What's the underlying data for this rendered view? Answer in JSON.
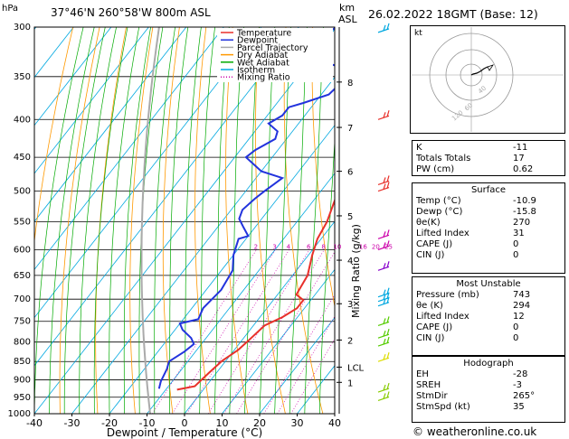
{
  "header": {
    "location": "37°46'N  260°58'W  800m  ASL",
    "datetime": "26.02.2022  18GMT  (Base: 12)",
    "hpa_unit": "hPa",
    "km_unit": "km",
    "asl_unit": "ASL"
  },
  "footer": {
    "copyright": "© weatheronline.co.uk"
  },
  "chart_data": {
    "type": "line",
    "title": "",
    "xlabel": "Dewpoint / Temperature (°C)",
    "ylabel_right": "Mixing Ratio (g/kg)",
    "x_ticks": [
      "-40",
      "-30",
      "-20",
      "-10",
      "0",
      "10",
      "20",
      "30",
      "40"
    ],
    "xlim": [
      -40,
      40
    ],
    "ylim_hpa": [
      1000,
      300
    ],
    "pressure_ticks": [
      "300",
      "350",
      "400",
      "450",
      "500",
      "550",
      "600",
      "650",
      "700",
      "750",
      "800",
      "850",
      "900",
      "950",
      "1000"
    ],
    "km_ticks": [
      {
        "label": "8",
        "p": 356
      },
      {
        "label": "7",
        "p": 410
      },
      {
        "label": "6",
        "p": 470
      },
      {
        "label": "5",
        "p": 540
      },
      {
        "label": "4",
        "p": 620
      },
      {
        "label": "3",
        "p": 710
      },
      {
        "label": "2",
        "p": 795
      },
      {
        "label": "LCL",
        "p": 865
      },
      {
        "label": "1",
        "p": 907
      }
    ],
    "mixing_ratio_labels": [
      "2",
      "3",
      "4",
      "6",
      "8",
      "10",
      "16",
      "20",
      "25"
    ],
    "legend": [
      {
        "name": "Temperature",
        "color": "#e8302a"
      },
      {
        "name": "Dewpoint",
        "color": "#2233dd"
      },
      {
        "name": "Parcel Trajectory",
        "color": "#aaaaaa"
      },
      {
        "name": "Dry Adiabat",
        "color": "#ff9900"
      },
      {
        "name": "Wet Adiabat",
        "color": "#00aa00"
      },
      {
        "name": "Isotherm",
        "color": "#00a8e0"
      },
      {
        "name": "Mixing Ratio",
        "color": "#cc00aa"
      }
    ],
    "series": [
      {
        "name": "Temperature",
        "color": "#e8302a",
        "points": [
          [
            -7,
            928
          ],
          [
            -3,
            918
          ],
          [
            -2,
            880
          ],
          [
            -1,
            848
          ],
          [
            1,
            820
          ],
          [
            2,
            790
          ],
          [
            3,
            760
          ],
          [
            6,
            740
          ],
          [
            8,
            720
          ],
          [
            8,
            702
          ],
          [
            5,
            690
          ],
          [
            4,
            650
          ],
          [
            1,
            610
          ],
          [
            -1,
            580
          ],
          [
            -2,
            550
          ],
          [
            -4,
            520
          ],
          [
            -6,
            490
          ],
          [
            -8,
            460
          ],
          [
            -10,
            430
          ],
          [
            -12,
            400
          ],
          [
            -14,
            370
          ],
          [
            -16,
            345
          ],
          [
            -18,
            320
          ],
          [
            -20,
            300
          ]
        ]
      },
      {
        "name": "Dewpoint",
        "color": "#2233dd",
        "points": [
          [
            -12,
            925
          ],
          [
            -13,
            905
          ],
          [
            -14,
            870
          ],
          [
            -15,
            850
          ],
          [
            -13,
            825
          ],
          [
            -12,
            805
          ],
          [
            -14,
            790
          ],
          [
            -18,
            770
          ],
          [
            -20,
            755
          ],
          [
            -16,
            745
          ],
          [
            -17,
            720
          ],
          [
            -16,
            680
          ],
          [
            -17,
            640
          ],
          [
            -20,
            610
          ],
          [
            -22,
            580
          ],
          [
            -20,
            575
          ],
          [
            -23,
            560
          ],
          [
            -26,
            545
          ],
          [
            -27,
            530
          ],
          [
            -26,
            512
          ],
          [
            -25,
            500
          ],
          [
            -24,
            490
          ],
          [
            -23,
            480
          ],
          [
            -30,
            470
          ],
          [
            -37,
            450
          ],
          [
            -36,
            440
          ],
          [
            -33,
            425
          ],
          [
            -34,
            415
          ],
          [
            -38,
            405
          ],
          [
            -36,
            395
          ],
          [
            -36,
            385
          ],
          [
            -33,
            380
          ],
          [
            -28,
            370
          ],
          [
            -27,
            355
          ],
          [
            -30,
            340
          ],
          [
            -42,
            330
          ],
          [
            -44,
            320
          ],
          [
            -40,
            300
          ]
        ]
      }
    ]
  },
  "hodograph": {
    "unit": "kt",
    "ring_labels": [
      "40",
      "60",
      "120"
    ]
  },
  "indices": {
    "top": [
      {
        "label": "K",
        "value": "-11"
      },
      {
        "label": "Totals Totals",
        "value": "17"
      },
      {
        "label": "PW (cm)",
        "value": "0.62"
      }
    ],
    "surface": {
      "title": "Surface",
      "rows": [
        {
          "label": "Temp (°C)",
          "value": "-10.9"
        },
        {
          "label": "Dewp (°C)",
          "value": "-15.8"
        },
        {
          "label": "θe(K)",
          "value": "270"
        },
        {
          "label": "Lifted Index",
          "value": "31"
        },
        {
          "label": "CAPE (J)",
          "value": "0"
        },
        {
          "label": "CIN (J)",
          "value": "0"
        }
      ]
    },
    "most_unstable": {
      "title": "Most Unstable",
      "rows": [
        {
          "label": "Pressure (mb)",
          "value": "743"
        },
        {
          "label": "θe (K)",
          "value": "294"
        },
        {
          "label": "Lifted Index",
          "value": "12"
        },
        {
          "label": "CAPE (J)",
          "value": "0"
        },
        {
          "label": "CIN (J)",
          "value": "0"
        }
      ]
    },
    "hodograph_table": {
      "title": "Hodograph",
      "rows": [
        {
          "label": "EH",
          "value": "-28"
        },
        {
          "label": "SREH",
          "value": "-3"
        },
        {
          "label": "StmDir",
          "value": "265°"
        },
        {
          "label": "StmSpd (kt)",
          "value": "35"
        }
      ]
    }
  }
}
